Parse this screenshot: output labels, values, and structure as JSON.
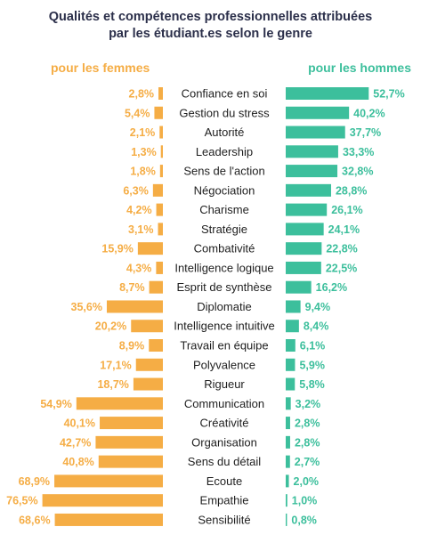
{
  "chart_data": {
    "type": "bar",
    "title_line1": "Qualités et compétences professionnelles attribuées",
    "title_line2": "par les étudiant.es selon le genre",
    "categories": [
      "Confiance en soi",
      "Gestion du stress",
      "Autorité",
      "Leadership",
      "Sens de l'action",
      "Négociation",
      "Charisme",
      "Stratégie",
      "Combativité",
      "Intelligence logique",
      "Esprit de synthèse",
      "Diplomatie",
      "Intelligence intuitive",
      "Travail en équipe",
      "Polyvalence",
      "Rigueur",
      "Communication",
      "Créativité",
      "Organisation",
      "Sens du détail",
      "Ecoute",
      "Empathie",
      "Sensibilité"
    ],
    "series": [
      {
        "name": "pour les femmes",
        "color": "#f5ad45",
        "values": [
          2.8,
          5.4,
          2.1,
          1.3,
          1.8,
          6.3,
          4.2,
          3.1,
          15.9,
          4.3,
          8.7,
          35.6,
          20.2,
          8.9,
          17.1,
          18.7,
          54.9,
          40.1,
          42.7,
          40.8,
          68.9,
          76.5,
          68.6
        ],
        "labels": [
          "2,8%",
          "5,4%",
          "2,1%",
          "1,3%",
          "1,8%",
          "6,3%",
          "4,2%",
          "3,1%",
          "15,9%",
          "4,3%",
          "8,7%",
          "35,6%",
          "20,2%",
          "8,9%",
          "17,1%",
          "18,7%",
          "54,9%",
          "40,1%",
          "42,7%",
          "40,8%",
          "68,9%",
          "76,5%",
          "68,6%"
        ]
      },
      {
        "name": "pour les hommes",
        "color": "#3cbf9c",
        "values": [
          52.7,
          40.2,
          37.7,
          33.3,
          32.8,
          28.8,
          26.1,
          24.1,
          22.8,
          22.5,
          16.2,
          9.4,
          8.4,
          6.1,
          5.9,
          5.8,
          3.2,
          2.8,
          2.8,
          2.7,
          2.0,
          1.0,
          0.8
        ],
        "labels": [
          "52,7%",
          "40,2%",
          "37,7%",
          "33,3%",
          "32,8%",
          "28,8%",
          "26,1%",
          "24,1%",
          "22,8%",
          "22,5%",
          "16,2%",
          "9,4%",
          "8,4%",
          "6,1%",
          "5,9%",
          "5,8%",
          "3,2%",
          "2,8%",
          "2,8%",
          "2,7%",
          "2,0%",
          "1,0%",
          "0,8%"
        ]
      }
    ]
  }
}
